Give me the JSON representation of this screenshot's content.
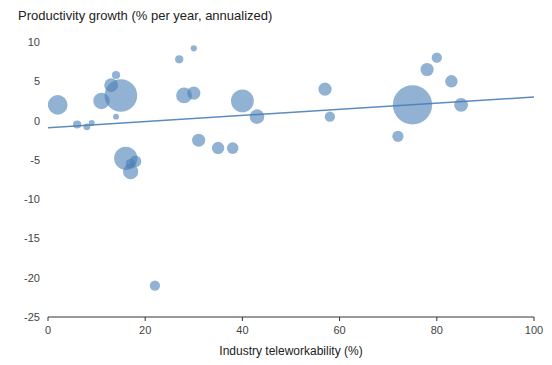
{
  "chart_data": {
    "type": "bubble",
    "title": "Productivity growth (% per year, annualized)",
    "xlabel": "Industry teleworkability (%)",
    "xlim": [
      0,
      100
    ],
    "ylim": [
      -25,
      10
    ],
    "xticks": [
      0,
      20,
      40,
      60,
      80,
      100
    ],
    "yticks": [
      10,
      5,
      0,
      -5,
      -10,
      -15,
      -20,
      -25
    ],
    "grid": false,
    "series": [
      {
        "type": "scatter",
        "color": "#4a7fb5",
        "x": [
          2,
          6,
          8,
          9,
          11,
          13,
          14,
          14,
          15,
          16,
          17,
          17,
          18,
          22,
          27,
          30,
          28,
          30,
          31,
          35,
          38,
          40,
          43,
          57,
          58,
          72,
          75,
          78,
          80,
          83,
          85
        ],
        "values": [
          2.0,
          -0.5,
          -0.8,
          -0.3,
          2.5,
          4.5,
          5.8,
          0.5,
          3.2,
          -4.8,
          -5.5,
          -6.5,
          -5.2,
          -21.0,
          7.8,
          9.2,
          3.2,
          3.5,
          -2.5,
          -3.5,
          -3.5,
          2.5,
          0.5,
          4.0,
          0.5,
          -2.0,
          2.0,
          6.5,
          8.0,
          5.0,
          2.0
        ],
        "sizes": [
          200,
          35,
          25,
          18,
          140,
          100,
          35,
          18,
          550,
          280,
          50,
          120,
          70,
          55,
          35,
          20,
          130,
          90,
          90,
          80,
          70,
          270,
          110,
          90,
          55,
          65,
          800,
          90,
          55,
          80,
          100
        ]
      },
      {
        "type": "line",
        "color": "#4a7fb5",
        "x": [
          0,
          100
        ],
        "values": [
          -0.9,
          3.0
        ]
      }
    ]
  }
}
